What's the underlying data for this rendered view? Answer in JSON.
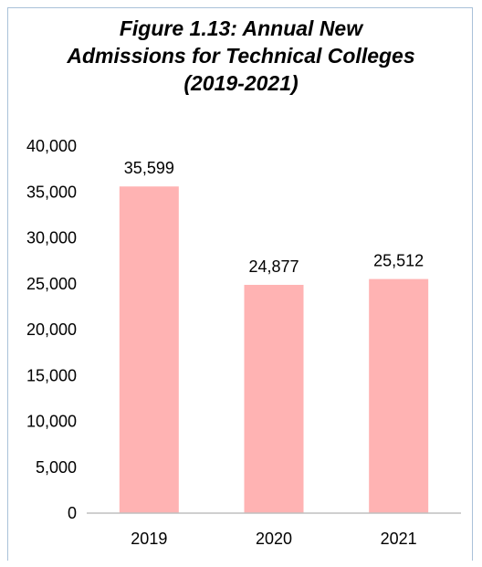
{
  "chart_data": {
    "type": "bar",
    "title_lines": [
      "Figure 1.13: Annual New",
      "Admissions for Technical Colleges",
      "(2019-2021)"
    ],
    "categories": [
      "2019",
      "2020",
      "2021"
    ],
    "values": [
      35599,
      24877,
      25512
    ],
    "data_labels": [
      "35,599",
      "24,877",
      "25,512"
    ],
    "y_ticks": [
      "40,000",
      "35,000",
      "30,000",
      "25,000",
      "20,000",
      "15,000",
      "10,000",
      "5,000",
      "0"
    ],
    "ylim": [
      0,
      40000
    ],
    "xlabel": "",
    "ylabel": "",
    "grid": false,
    "legend": "none",
    "colors": {
      "bar": "#ffb3b3",
      "axis": "#bfbfbf"
    }
  }
}
